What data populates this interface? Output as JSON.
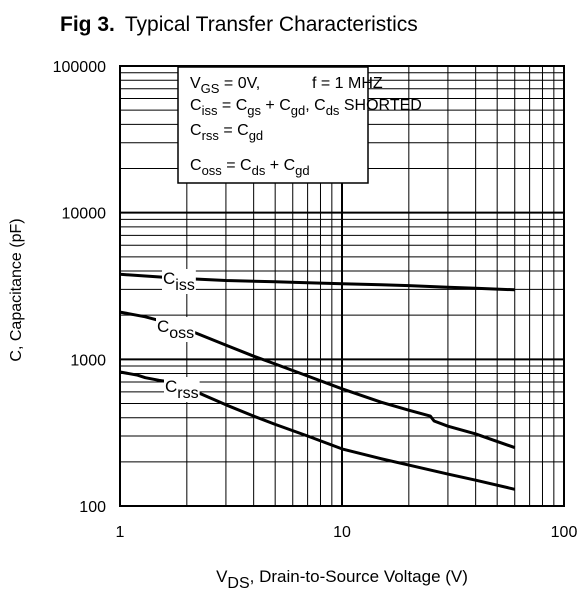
{
  "chart_data": {
    "type": "line",
    "title_prefix": "Fig 3.",
    "title": "Typical Transfer Characteristics",
    "ylabel": "C, Capacitance (pF)",
    "xlabel": {
      "main": "V",
      "sub": "DS",
      "rest": ", Drain-to-Source Voltage (V)"
    },
    "x_scale": "log",
    "y_scale": "log",
    "xlim": [
      1,
      100
    ],
    "ylim": [
      100,
      100000
    ],
    "x_ticks": [
      1,
      10,
      100
    ],
    "x_tick_labels": [
      "1",
      "10",
      "100"
    ],
    "y_ticks": [
      100,
      1000,
      10000,
      100000
    ],
    "y_tick_labels": [
      "100",
      "1000",
      "10000",
      "100000"
    ],
    "grid": true,
    "series": [
      {
        "name": "Ciss",
        "label_main": "C",
        "label_sub": "iss",
        "x": [
          1,
          1.3,
          1.7,
          2,
          3,
          5,
          7,
          10,
          15,
          20,
          30,
          40,
          60
        ],
        "y": [
          3800,
          3700,
          3600,
          3550,
          3450,
          3380,
          3330,
          3280,
          3230,
          3180,
          3100,
          3050,
          2980
        ]
      },
      {
        "name": "Coss",
        "label_main": "C",
        "label_sub": "oss",
        "x": [
          1,
          1.3,
          1.7,
          2,
          3,
          4,
          5,
          7,
          10,
          15,
          20,
          25,
          26,
          30,
          40,
          60
        ],
        "y": [
          2100,
          1950,
          1750,
          1600,
          1250,
          1050,
          930,
          770,
          630,
          510,
          450,
          410,
          380,
          350,
          310,
          250
        ]
      },
      {
        "name": "Crss",
        "label_main": "C",
        "label_sub": "rss",
        "x": [
          1,
          1.2,
          1.3,
          1.5,
          1.7,
          2,
          3,
          4,
          5,
          7,
          10,
          15,
          20,
          30,
          40,
          60
        ],
        "y": [
          820,
          780,
          750,
          720,
          700,
          640,
          490,
          410,
          360,
          300,
          245,
          210,
          190,
          165,
          150,
          130
        ]
      }
    ],
    "legend_box": {
      "line1": {
        "a_main": "V",
        "a_sub": "GS",
        "a_rest": " = 0V,",
        "b": "f = 1 MHZ"
      },
      "line2": {
        "m1": "C",
        "s1": "iss",
        "t1": " = C",
        "s2": "gs",
        "t2": " + C",
        "s3": "gd",
        "t3": ",  C",
        "s4": "ds",
        "t4": " SHORTED"
      },
      "line3": {
        "m1": "C",
        "s1": "rss",
        "t1": " = C",
        "s2": "gd"
      },
      "line4": {
        "m1": "C",
        "s1": "oss",
        "t1": " = C",
        "s2": "ds",
        "t2": " + C",
        "s3": "gd"
      }
    }
  }
}
